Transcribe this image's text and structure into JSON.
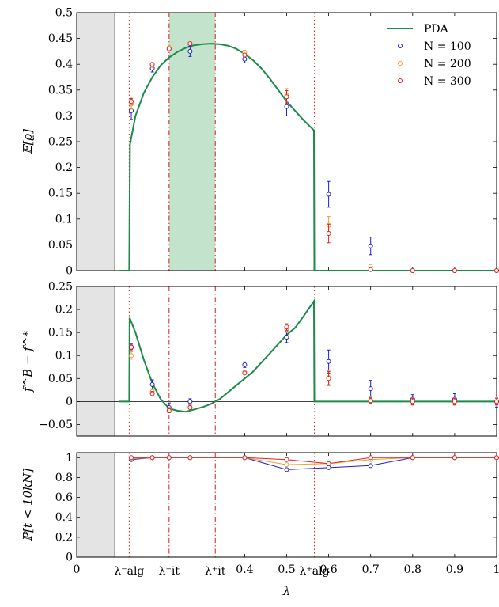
{
  "chart_data": {
    "type": "line",
    "xlabel": "λ",
    "xlim": [
      0,
      1
    ],
    "x_ticks": [
      {
        "value": 0,
        "label": "0"
      },
      {
        "value": 0.4,
        "label": "0.4"
      },
      {
        "value": 0.5,
        "label": "0.5"
      },
      {
        "value": 0.6,
        "label": "0.6"
      },
      {
        "value": 0.7,
        "label": "0.7"
      },
      {
        "value": 0.8,
        "label": "0.8"
      },
      {
        "value": 0.9,
        "label": "0.9"
      },
      {
        "value": 1,
        "label": "1"
      }
    ],
    "special_x_labels": [
      {
        "value": 0.125,
        "label": "λ⁻alg"
      },
      {
        "value": 0.22,
        "label": "λ⁻it"
      },
      {
        "value": 0.33,
        "label": "λ⁺it"
      },
      {
        "value": 0.566,
        "label": "λ⁺alg"
      }
    ],
    "shaded_excluded_region": [
      0,
      0.09
    ],
    "colors": {
      "PDA": "#1b8a4a",
      "N=100": "#1f1fcc",
      "N=200": "#f0a030",
      "N=300": "#e02020"
    },
    "legend": {
      "position": "top-right",
      "entries": [
        "PDA",
        "N = 100",
        "N = 200",
        "N = 300"
      ]
    },
    "panels": [
      {
        "ylabel": "𝔼[ϱ]",
        "ylim": [
          0,
          0.5
        ],
        "yticks": [
          0,
          0.05,
          0.1,
          0.15,
          0.2,
          0.25,
          0.3,
          0.35,
          0.4,
          0.45,
          0.5
        ],
        "ytick_labels": [
          "0",
          "0.05",
          "0.1",
          "0.15",
          "0.2",
          "0.25",
          "0.3",
          "0.35",
          "0.4",
          "0.45",
          "0.5"
        ],
        "shaded_region": [
          0.22,
          0.33
        ],
        "pda": [
          [
            0.1,
            0
          ],
          [
            0.125,
            0
          ],
          [
            0.127,
            0.245
          ],
          [
            0.14,
            0.3
          ],
          [
            0.16,
            0.345
          ],
          [
            0.18,
            0.375
          ],
          [
            0.2,
            0.398
          ],
          [
            0.22,
            0.413
          ],
          [
            0.24,
            0.424
          ],
          [
            0.26,
            0.432
          ],
          [
            0.28,
            0.437
          ],
          [
            0.3,
            0.439
          ],
          [
            0.32,
            0.44
          ],
          [
            0.34,
            0.439
          ],
          [
            0.36,
            0.436
          ],
          [
            0.38,
            0.43
          ],
          [
            0.4,
            0.42
          ],
          [
            0.42,
            0.408
          ],
          [
            0.44,
            0.392
          ],
          [
            0.46,
            0.372
          ],
          [
            0.48,
            0.35
          ],
          [
            0.5,
            0.328
          ],
          [
            0.52,
            0.31
          ],
          [
            0.54,
            0.292
          ],
          [
            0.565,
            0.272
          ],
          [
            0.566,
            0
          ],
          [
            1,
            0
          ]
        ],
        "series": [
          {
            "name": "N = 100",
            "points": [
              [
                0.13,
                0.31,
                0.017
              ],
              [
                0.18,
                0.392,
                0.007
              ],
              [
                0.22,
                0.43,
                0.004
              ],
              [
                0.27,
                0.425,
                0.01
              ],
              [
                0.4,
                0.41,
                0.007
              ],
              [
                0.5,
                0.318,
                0.018
              ],
              [
                0.6,
                0.148,
                0.025
              ],
              [
                0.7,
                0.048,
                0.017
              ],
              [
                0.8,
                0,
                0
              ],
              [
                0.9,
                0,
                0
              ],
              [
                1,
                0,
                0
              ]
            ]
          },
          {
            "name": "N = 200",
            "points": [
              [
                0.13,
                0.323,
                0.01
              ],
              [
                0.18,
                0.398,
                0.004
              ],
              [
                0.22,
                0.432,
                0.004
              ],
              [
                0.27,
                0.44,
                0.003
              ],
              [
                0.4,
                0.423,
                0.004
              ],
              [
                0.5,
                0.34,
                0.013
              ],
              [
                0.6,
                0.088,
                0.017
              ],
              [
                0.7,
                0.008,
                0.005
              ],
              [
                0.8,
                0,
                0
              ],
              [
                0.9,
                0,
                0
              ],
              [
                1,
                0,
                0
              ]
            ]
          },
          {
            "name": "N = 300",
            "points": [
              [
                0.13,
                0.328,
                0.006
              ],
              [
                0.18,
                0.4,
                0.003
              ],
              [
                0.22,
                0.43,
                0.003
              ],
              [
                0.27,
                0.44,
                0.003
              ],
              [
                0.4,
                0.418,
                0.003
              ],
              [
                0.5,
                0.337,
                0.012
              ],
              [
                0.6,
                0.072,
                0.018
              ],
              [
                0.7,
                0.002,
                0.002
              ],
              [
                0.8,
                0,
                0
              ],
              [
                0.9,
                0,
                0
              ],
              [
                1,
                0,
                0
              ]
            ]
          }
        ]
      },
      {
        "ylabel": "f^B − f^*",
        "ylim": [
          -0.075,
          0.25
        ],
        "yticks": [
          -0.05,
          0,
          0.05,
          0.1,
          0.15,
          0.2,
          0.25
        ],
        "ytick_labels": [
          "−0.05",
          "0",
          "0.05",
          "0.1",
          "0.15",
          "0.2",
          "0.25"
        ],
        "pda": [
          [
            0.1,
            0
          ],
          [
            0.125,
            0
          ],
          [
            0.126,
            0.182
          ],
          [
            0.14,
            0.15
          ],
          [
            0.16,
            0.09
          ],
          [
            0.18,
            0.04
          ],
          [
            0.2,
            0.005
          ],
          [
            0.22,
            -0.015
          ],
          [
            0.24,
            -0.02
          ],
          [
            0.26,
            -0.022
          ],
          [
            0.28,
            -0.017
          ],
          [
            0.3,
            -0.012
          ],
          [
            0.32,
            -0.005
          ],
          [
            0.34,
            0.005
          ],
          [
            0.36,
            0.02
          ],
          [
            0.38,
            0.035
          ],
          [
            0.4,
            0.05
          ],
          [
            0.42,
            0.065
          ],
          [
            0.44,
            0.085
          ],
          [
            0.46,
            0.105
          ],
          [
            0.48,
            0.125
          ],
          [
            0.5,
            0.145
          ],
          [
            0.52,
            0.16
          ],
          [
            0.54,
            0.185
          ],
          [
            0.565,
            0.218
          ],
          [
            0.566,
            0
          ],
          [
            1,
            0
          ]
        ],
        "series": [
          {
            "name": "N = 100",
            "points": [
              [
                0.13,
                0.118,
                0.008
              ],
              [
                0.18,
                0.037,
                0.01
              ],
              [
                0.22,
                -0.013,
                0.01
              ],
              [
                0.27,
                0,
                0.006
              ],
              [
                0.4,
                0.08,
                0.006
              ],
              [
                0.5,
                0.14,
                0.012
              ],
              [
                0.6,
                0.087,
                0.025
              ],
              [
                0.7,
                0.028,
                0.018
              ],
              [
                0.8,
                0.005,
                0.01
              ],
              [
                0.9,
                0.005,
                0.012
              ],
              [
                1,
                0,
                0.012
              ]
            ]
          },
          {
            "name": "N = 200",
            "points": [
              [
                0.13,
                0.1,
                0.008
              ],
              [
                0.18,
                0.022,
                0.006
              ],
              [
                0.22,
                -0.018,
                0.006
              ],
              [
                0.27,
                -0.012,
                0.004
              ],
              [
                0.4,
                0.064,
                0.004
              ],
              [
                0.5,
                0.158,
                0.008
              ],
              [
                0.6,
                0.052,
                0.015
              ],
              [
                0.7,
                0.003,
                0.007
              ],
              [
                0.8,
                0,
                0.008
              ],
              [
                0.9,
                0,
                0.008
              ],
              [
                1,
                0,
                0.008
              ]
            ]
          },
          {
            "name": "N = 300",
            "points": [
              [
                0.13,
                0.118,
                0.005
              ],
              [
                0.18,
                0.017,
                0.005
              ],
              [
                0.22,
                -0.02,
                0.004
              ],
              [
                0.27,
                -0.013,
                0.003
              ],
              [
                0.4,
                0.062,
                0.003
              ],
              [
                0.5,
                0.162,
                0.007
              ],
              [
                0.6,
                0.05,
                0.015
              ],
              [
                0.7,
                0.002,
                0.006
              ],
              [
                0.8,
                0,
                0.007
              ],
              [
                0.9,
                0,
                0.007
              ],
              [
                1,
                0,
                0.007
              ]
            ]
          }
        ]
      },
      {
        "ylabel": "ℙ[t < 10kN]",
        "ylim": [
          0,
          1.05
        ],
        "yticks": [
          0,
          0.2,
          0.4,
          0.6,
          0.8,
          1
        ],
        "ytick_labels": [
          "0",
          "0.2",
          "0.4",
          "0.6",
          "0.8",
          "1"
        ],
        "series": [
          {
            "name": "N = 100",
            "points": [
              [
                0.13,
                0.98
              ],
              [
                0.18,
                1
              ],
              [
                0.22,
                1
              ],
              [
                0.27,
                1
              ],
              [
                0.4,
                1
              ],
              [
                0.5,
                0.88
              ],
              [
                0.6,
                0.9
              ],
              [
                0.7,
                0.92
              ],
              [
                0.8,
                1
              ],
              [
                0.9,
                1
              ],
              [
                1,
                1
              ]
            ]
          },
          {
            "name": "N = 200",
            "points": [
              [
                0.13,
                0.99
              ],
              [
                0.18,
                1
              ],
              [
                0.22,
                1
              ],
              [
                0.27,
                1
              ],
              [
                0.4,
                1
              ],
              [
                0.5,
                0.93
              ],
              [
                0.6,
                0.94
              ],
              [
                0.7,
                0.98
              ],
              [
                0.8,
                1
              ],
              [
                0.9,
                1
              ],
              [
                1,
                1
              ]
            ]
          },
          {
            "name": "N = 300",
            "points": [
              [
                0.13,
                1
              ],
              [
                0.18,
                1
              ],
              [
                0.22,
                1
              ],
              [
                0.27,
                1
              ],
              [
                0.4,
                1
              ],
              [
                0.5,
                0.98
              ],
              [
                0.6,
                0.94
              ],
              [
                0.7,
                1
              ],
              [
                0.8,
                1
              ],
              [
                0.9,
                1
              ],
              [
                1,
                1
              ]
            ]
          }
        ]
      }
    ]
  }
}
